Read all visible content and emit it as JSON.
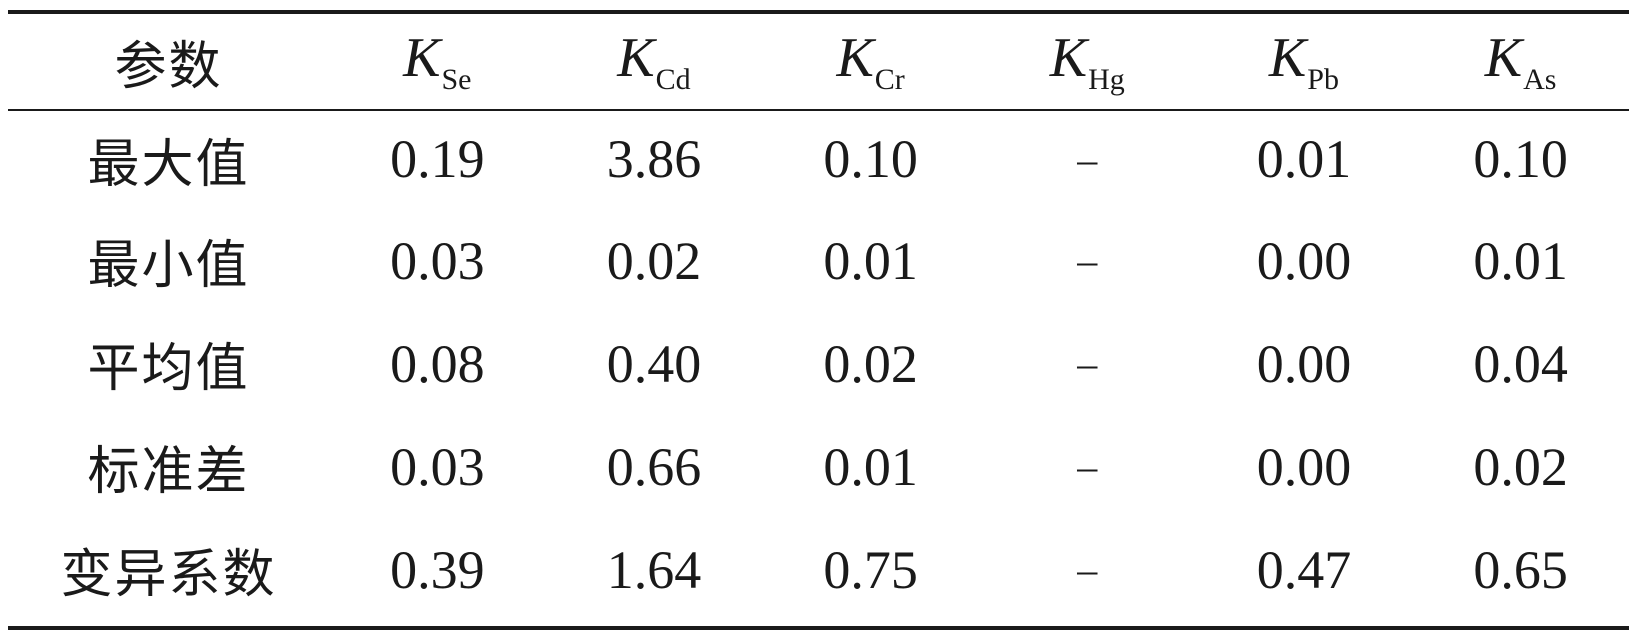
{
  "table": {
    "header": {
      "param_label": "参数",
      "columns": [
        {
          "symbol": "K",
          "subscript": "Se"
        },
        {
          "symbol": "K",
          "subscript": "Cd"
        },
        {
          "symbol": "K",
          "subscript": "Cr"
        },
        {
          "symbol": "K",
          "subscript": "Hg"
        },
        {
          "symbol": "K",
          "subscript": "Pb"
        },
        {
          "symbol": "K",
          "subscript": "As"
        }
      ]
    },
    "rows": [
      {
        "label": "最大值",
        "values": [
          "0.19",
          "3.86",
          "0.10",
          "–",
          "0.01",
          "0.10"
        ]
      },
      {
        "label": "最小值",
        "values": [
          "0.03",
          "0.02",
          "0.01",
          "–",
          "0.00",
          "0.01"
        ]
      },
      {
        "label": "平均值",
        "values": [
          "0.08",
          "0.40",
          "0.02",
          "–",
          "0.00",
          "0.04"
        ]
      },
      {
        "label": "标准差",
        "values": [
          "0.03",
          "0.66",
          "0.01",
          "–",
          "0.00",
          "0.02"
        ]
      },
      {
        "label": "变异系数",
        "values": [
          "0.39",
          "1.64",
          "0.75",
          "–",
          "0.47",
          "0.65"
        ]
      }
    ]
  }
}
